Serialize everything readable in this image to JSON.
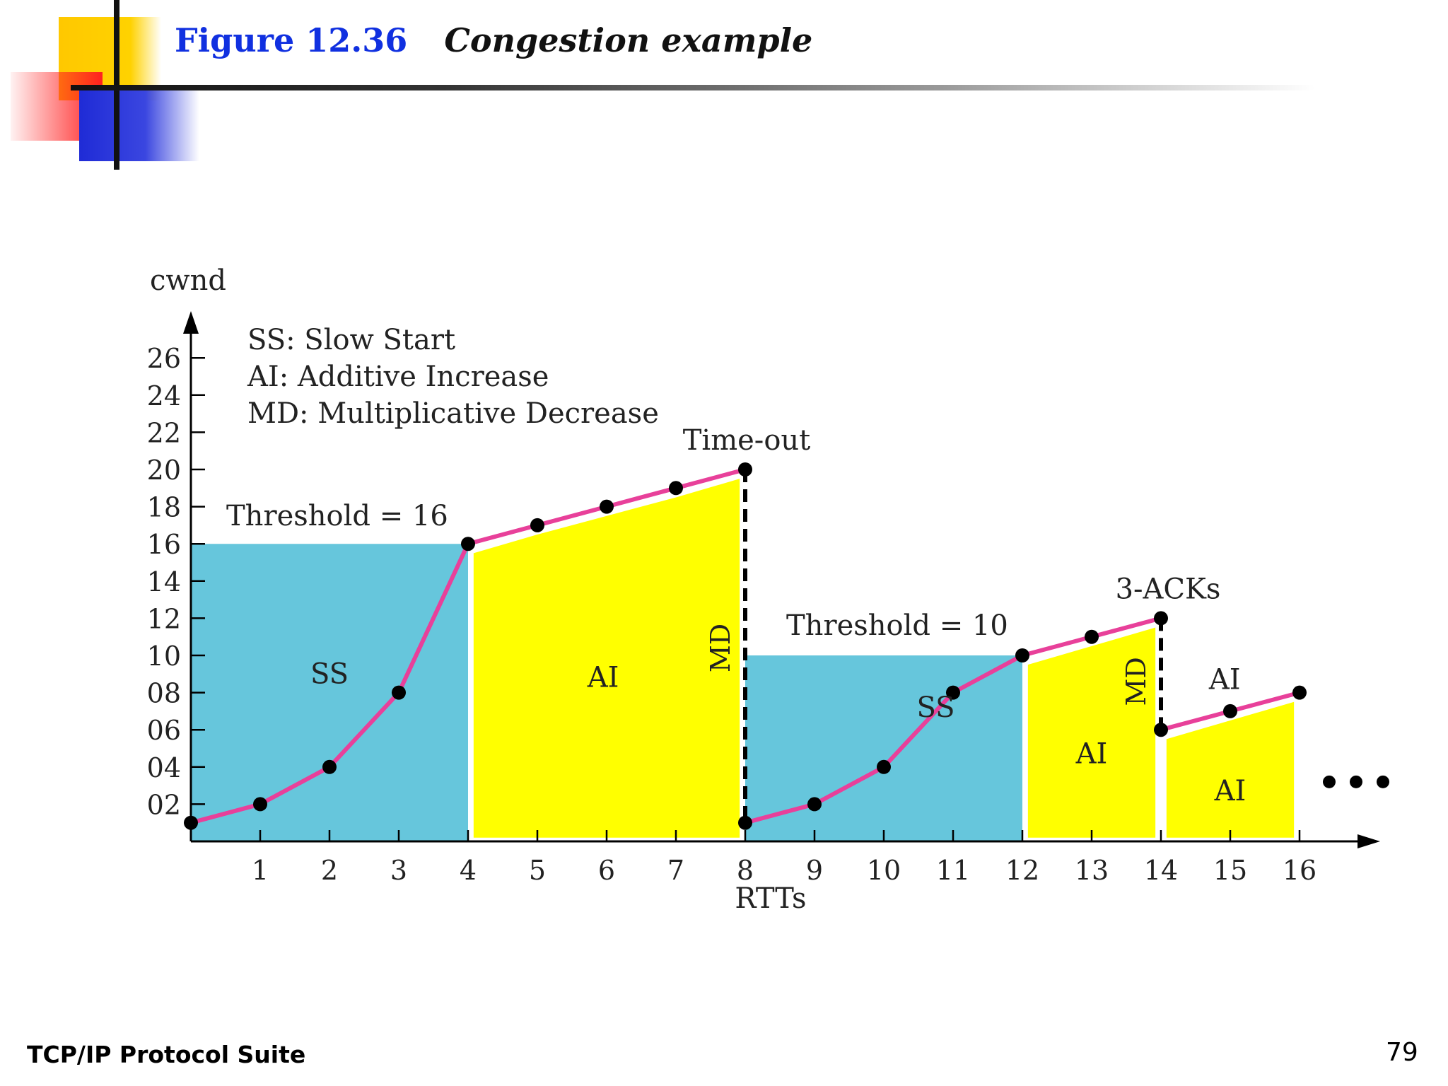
{
  "slide": {
    "figure_number": "Figure 12.36",
    "figure_caption": "Congestion example",
    "footer": "TCP/IP Protocol Suite",
    "page_number": "79"
  },
  "chart_data": {
    "type": "line",
    "ylabel": "cwnd",
    "xlabel": "RTTs",
    "ylim": [
      0,
      26
    ],
    "xlim": [
      0,
      16
    ],
    "yticks": [
      "02",
      "04",
      "06",
      "08",
      "10",
      "12",
      "14",
      "16",
      "18",
      "20",
      "22",
      "24",
      "26"
    ],
    "xticks": [
      "1",
      "2",
      "3",
      "4",
      "5",
      "6",
      "7",
      "8",
      "9",
      "10",
      "11",
      "12",
      "13",
      "14",
      "15",
      "16"
    ],
    "legend": [
      "SS: Slow Start",
      "AI: Additive Increase",
      "MD: Multiplicative Decrease"
    ],
    "series": [
      {
        "x": [
          0,
          1,
          2,
          3,
          4,
          5,
          6,
          7,
          8,
          8,
          9,
          10,
          11,
          12,
          13,
          14,
          14,
          15,
          16
        ],
        "y": [
          1,
          2,
          4,
          8,
          16,
          17,
          18,
          19,
          20,
          1,
          2,
          4,
          8,
          10,
          11,
          12,
          6,
          7,
          8
        ]
      }
    ],
    "regions": [
      {
        "phase": "SS",
        "from": 0,
        "to": 4,
        "label": "SS"
      },
      {
        "phase": "AI",
        "from": 4,
        "to": 8,
        "label": "AI"
      },
      {
        "phase": "SS",
        "from": 8,
        "to": 12,
        "label": "SS"
      },
      {
        "phase": "AI",
        "from": 12,
        "to": 14,
        "label": "AI"
      },
      {
        "phase": "AI",
        "from": 14,
        "to": 16,
        "label": "AI"
      }
    ],
    "thresholds": [
      {
        "label": "Threshold = 16",
        "value": 16,
        "from": 0,
        "to": 4
      },
      {
        "label": "Threshold = 10",
        "value": 10,
        "from": 8,
        "to": 12
      }
    ],
    "events": [
      {
        "label": "Time-out",
        "x": 8,
        "from": 20,
        "to": 1,
        "drop_label": "MD"
      },
      {
        "label": "3-ACKs",
        "x": 14,
        "from": 12,
        "to": 6,
        "drop_label": "MD"
      }
    ],
    "extra_label": "AI",
    "continuation": "•••",
    "colors": {
      "ss": "#66c6dc",
      "ai": "#ffff00",
      "line": "#e8409a",
      "point": "#000000"
    }
  }
}
